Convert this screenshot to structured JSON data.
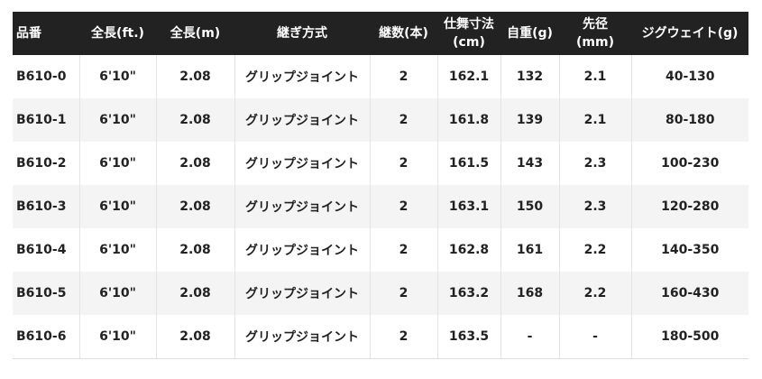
{
  "headers": [
    "品番",
    "全長(ft.)",
    "全長(m)",
    "継ぎ方式",
    "継数(本)",
    "仕舞寸法\n(cm)",
    "自重(g)",
    "先径\n(mm)",
    "ジグウェイト(g)"
  ],
  "rows": [
    [
      "B610-0",
      "6'10\"",
      "2.08",
      "グリップジョイント",
      "2",
      "162.1",
      "132",
      "2.1",
      "40-130"
    ],
    [
      "B610-1",
      "6'10\"",
      "2.08",
      "グリップジョイント",
      "2",
      "161.8",
      "139",
      "2.1",
      "80-180"
    ],
    [
      "B610-2",
      "6'10\"",
      "2.08",
      "グリップジョイント",
      "2",
      "161.5",
      "143",
      "2.3",
      "100-230"
    ],
    [
      "B610-3",
      "6'10\"",
      "2.08",
      "グリップジョイント",
      "2",
      "163.1",
      "150",
      "2.3",
      "120-280"
    ],
    [
      "B610-4",
      "6'10\"",
      "2.08",
      "グリップジョイント",
      "2",
      "162.8",
      "161",
      "2.2",
      "140-350"
    ],
    [
      "B610-5",
      "6'10\"",
      "2.08",
      "グリップジョイント",
      "2",
      "163.2",
      "168",
      "2.2",
      "160-430"
    ],
    [
      "B610-6",
      "6'10\"",
      "2.08",
      "グリップジョイント",
      "2",
      "163.5",
      "-",
      "-",
      "180-500"
    ]
  ]
}
